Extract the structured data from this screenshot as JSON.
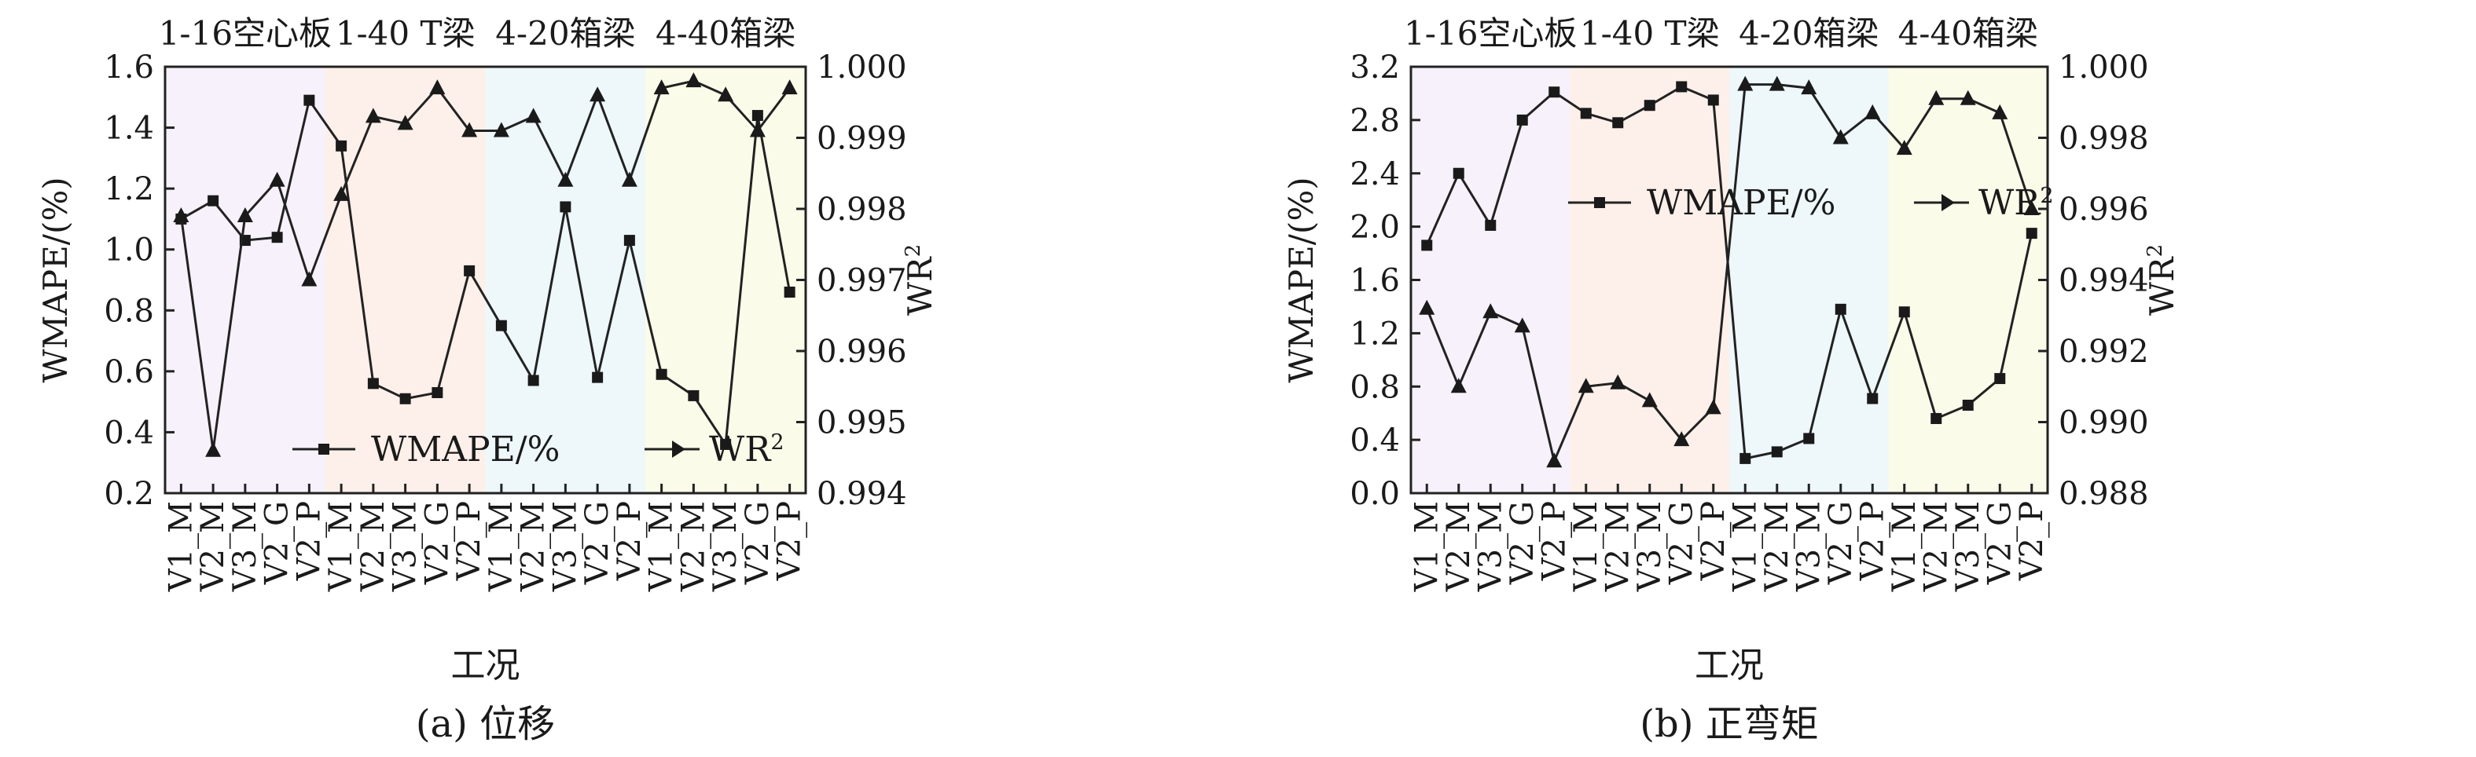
{
  "figure": {
    "xlabel": "工况",
    "legend": {
      "wmape": "WMAPE/%",
      "wr2_main": "WR",
      "wr2_sup": "2"
    }
  },
  "group_colors": [
    "#f6f1fa",
    "#fdf0ea",
    "#eef7fa",
    "#fafbe9"
  ],
  "chart_data": [
    {
      "type": "line",
      "caption": "(a) 位移",
      "groups": [
        "1-16空心板",
        "1-40 T梁",
        "4-20箱梁",
        "4-40箱梁"
      ],
      "categories": [
        "V1_M",
        "V2_M",
        "V3_M",
        "V2_G",
        "V2_P",
        "V1_M",
        "V2_M",
        "V3_M",
        "V2_G",
        "V2_P",
        "V1_M",
        "V2_M",
        "V3_M",
        "V2_G",
        "V2_P",
        "V1_M",
        "V2_M",
        "V3_M",
        "V2_G",
        "V2_P"
      ],
      "xlabel": "工况",
      "ylabel": "WMAPE/(%)",
      "ylabel2_main": "WR",
      "ylabel2_sup": "2",
      "ylim": [
        0.2,
        1.6
      ],
      "yticks": [
        "0.2",
        "0.4",
        "0.6",
        "0.8",
        "1.0",
        "1.2",
        "1.4",
        "1.6"
      ],
      "y2lim": [
        0.994,
        1.0
      ],
      "y2ticks": [
        "0.994",
        "0.995",
        "0.996",
        "0.997",
        "0.998",
        "0.999",
        "1.000"
      ],
      "legend_position": "bottom-center",
      "series": [
        {
          "name": "WMAPE/%",
          "axis": "left",
          "marker": "square",
          "values": [
            1.1,
            1.16,
            1.03,
            1.04,
            1.49,
            1.34,
            0.56,
            0.51,
            0.53,
            0.93,
            0.75,
            0.57,
            1.14,
            0.58,
            1.03,
            0.59,
            0.52,
            0.36,
            1.44,
            0.86
          ]
        },
        {
          "name": "WR2",
          "axis": "right",
          "marker": "triangle",
          "values": [
            0.9979,
            0.9946,
            0.9979,
            0.9984,
            0.997,
            0.9982,
            0.9993,
            0.9992,
            0.9997,
            0.9991,
            0.9991,
            0.9993,
            0.9984,
            0.9996,
            0.9984,
            0.9997,
            0.9998,
            0.9996,
            0.9991,
            0.9997
          ]
        }
      ]
    },
    {
      "type": "line",
      "caption": "(b) 正弯矩",
      "groups": [
        "1-16空心板",
        "1-40 T梁",
        "4-20箱梁",
        "4-40箱梁"
      ],
      "categories": [
        "V1_M",
        "V2_M",
        "V3_M",
        "V2_G",
        "V2_P",
        "V1_M",
        "V2_M",
        "V3_M",
        "V2_G",
        "V2_P",
        "V1_M",
        "V2_M",
        "V3_M",
        "V2_G",
        "V2_P",
        "V1_M",
        "V2_M",
        "V3_M",
        "V2_G",
        "V2_P"
      ],
      "xlabel": "工况",
      "ylabel": "WMAPE/(%)",
      "ylabel2_main": "WR",
      "ylabel2_sup": "2",
      "ylim": [
        0.0,
        3.2
      ],
      "yticks": [
        "0.0",
        "0.4",
        "0.8",
        "1.2",
        "1.6",
        "2.0",
        "2.4",
        "2.8",
        "3.2"
      ],
      "y2lim": [
        0.988,
        1.0
      ],
      "y2ticks": [
        "0.988",
        "0.990",
        "0.992",
        "0.994",
        "0.996",
        "0.998",
        "1.000"
      ],
      "legend_position": "top-center",
      "series": [
        {
          "name": "WMAPE/%",
          "axis": "left",
          "marker": "square",
          "values": [
            1.86,
            2.4,
            2.01,
            2.8,
            3.01,
            2.85,
            2.78,
            2.91,
            3.05,
            2.95,
            0.26,
            0.31,
            0.41,
            1.38,
            0.71,
            1.36,
            0.56,
            0.66,
            0.86,
            1.95
          ]
        },
        {
          "name": "WR2",
          "axis": "right",
          "marker": "triangle",
          "values": [
            0.9932,
            0.991,
            0.9931,
            0.9927,
            0.9889,
            0.991,
            0.9911,
            0.9906,
            0.9895,
            0.9904,
            0.9995,
            0.9995,
            0.9994,
            0.998,
            0.9987,
            0.9977,
            0.9991,
            0.9991,
            0.9987,
            0.996
          ]
        }
      ]
    }
  ]
}
